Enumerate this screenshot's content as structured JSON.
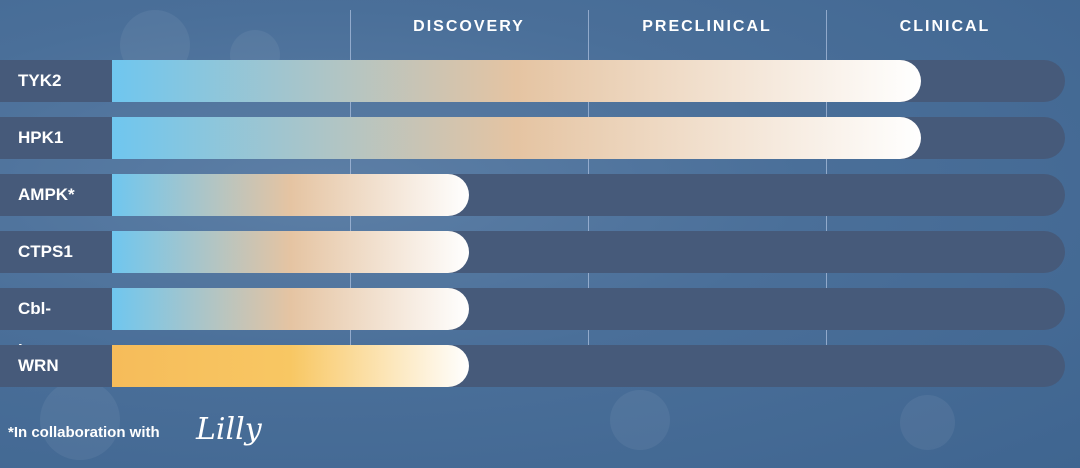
{
  "chart_data": {
    "type": "bar",
    "stages": [
      "DISCOVERY",
      "PRECLINICAL",
      "CLINICAL"
    ],
    "categories": [
      "TYK2",
      "HPK1",
      "AMPK*",
      "CTPS1",
      "Cbl-b",
      "WRN"
    ],
    "values": [
      2.4,
      2.4,
      0.5,
      0.5,
      0.5,
      0.5
    ],
    "xlim": [
      -1,
      3
    ],
    "colors": {
      "gradient_start": "#6fc6ef",
      "gradient_mid": "#e5c4a2",
      "gradient_end": "#ffffff",
      "wrn_start": "#f6bc5a",
      "track": "#465a7a",
      "background": "#4a6f99"
    }
  },
  "footnote": "*In collaboration with",
  "logo_text": "Lilly"
}
